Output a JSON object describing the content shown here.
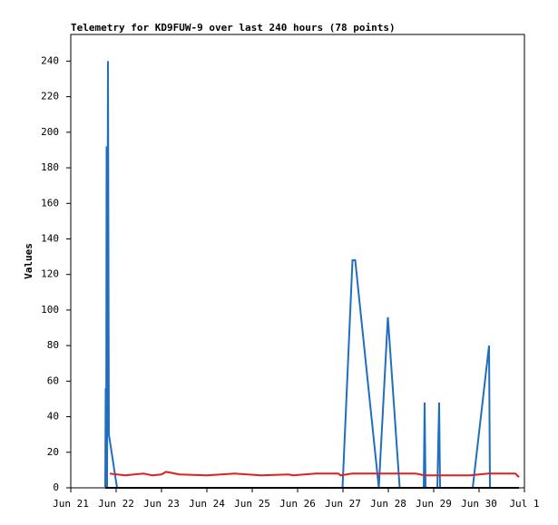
{
  "chart_data": {
    "type": "line",
    "title": "Telemetry for KD9FUW-9 over last 240 hours (78 points)",
    "y_label": "Values",
    "xlim": [
      0,
      10
    ],
    "xticks": [
      {
        "value": 0,
        "label": "Jun 21"
      },
      {
        "value": 1,
        "label": "Jun 22"
      },
      {
        "value": 2,
        "label": "Jun 23"
      },
      {
        "value": 3,
        "label": "Jun 24"
      },
      {
        "value": 4,
        "label": "Jun 25"
      },
      {
        "value": 5,
        "label": "Jun 26"
      },
      {
        "value": 6,
        "label": "Jun 27"
      },
      {
        "value": 7,
        "label": "Jun 28"
      },
      {
        "value": 8,
        "label": "Jun 29"
      },
      {
        "value": 9,
        "label": "Jun 30"
      },
      {
        "value": 10,
        "label": "Jul 1"
      }
    ],
    "ylim": [
      0,
      255
    ],
    "yticks": [
      0,
      20,
      40,
      60,
      80,
      100,
      120,
      140,
      160,
      180,
      200,
      220,
      240
    ],
    "series": [
      {
        "color": "#1f6fc0",
        "x": [
          0.76,
          0.77,
          0.78,
          0.79,
          0.8,
          0.82,
          0.84,
          1.02,
          5.99,
          6.21,
          6.27,
          6.79,
          6.99,
          7.25,
          7.78,
          7.8,
          7.82,
          8.08,
          8.12,
          8.14,
          8.86,
          9.22,
          9.24
        ],
        "values": [
          0,
          56,
          0,
          192,
          0,
          240,
          30,
          0,
          0,
          128,
          128,
          0,
          96,
          0,
          0,
          48,
          0,
          0,
          48,
          0,
          0,
          80,
          0
        ]
      },
      {
        "color": "#e02020",
        "x": [
          0.86,
          1.2,
          1.6,
          1.8,
          2.0,
          2.1,
          2.4,
          3.0,
          3.6,
          4.2,
          4.8,
          4.9,
          5.4,
          5.9,
          5.95,
          6.2,
          7.0,
          7.6,
          7.8,
          8.4,
          8.8,
          9.2,
          9.8,
          9.88
        ],
        "values": [
          8,
          7,
          8,
          7,
          7.5,
          9,
          7.5,
          7,
          8,
          7,
          7.5,
          7,
          8,
          8,
          7,
          8,
          8,
          8,
          7,
          7,
          7,
          8,
          8,
          6
        ]
      },
      {
        "color": "#000000",
        "x": [
          0.76,
          9.88
        ],
        "values": [
          0,
          0
        ]
      }
    ]
  }
}
